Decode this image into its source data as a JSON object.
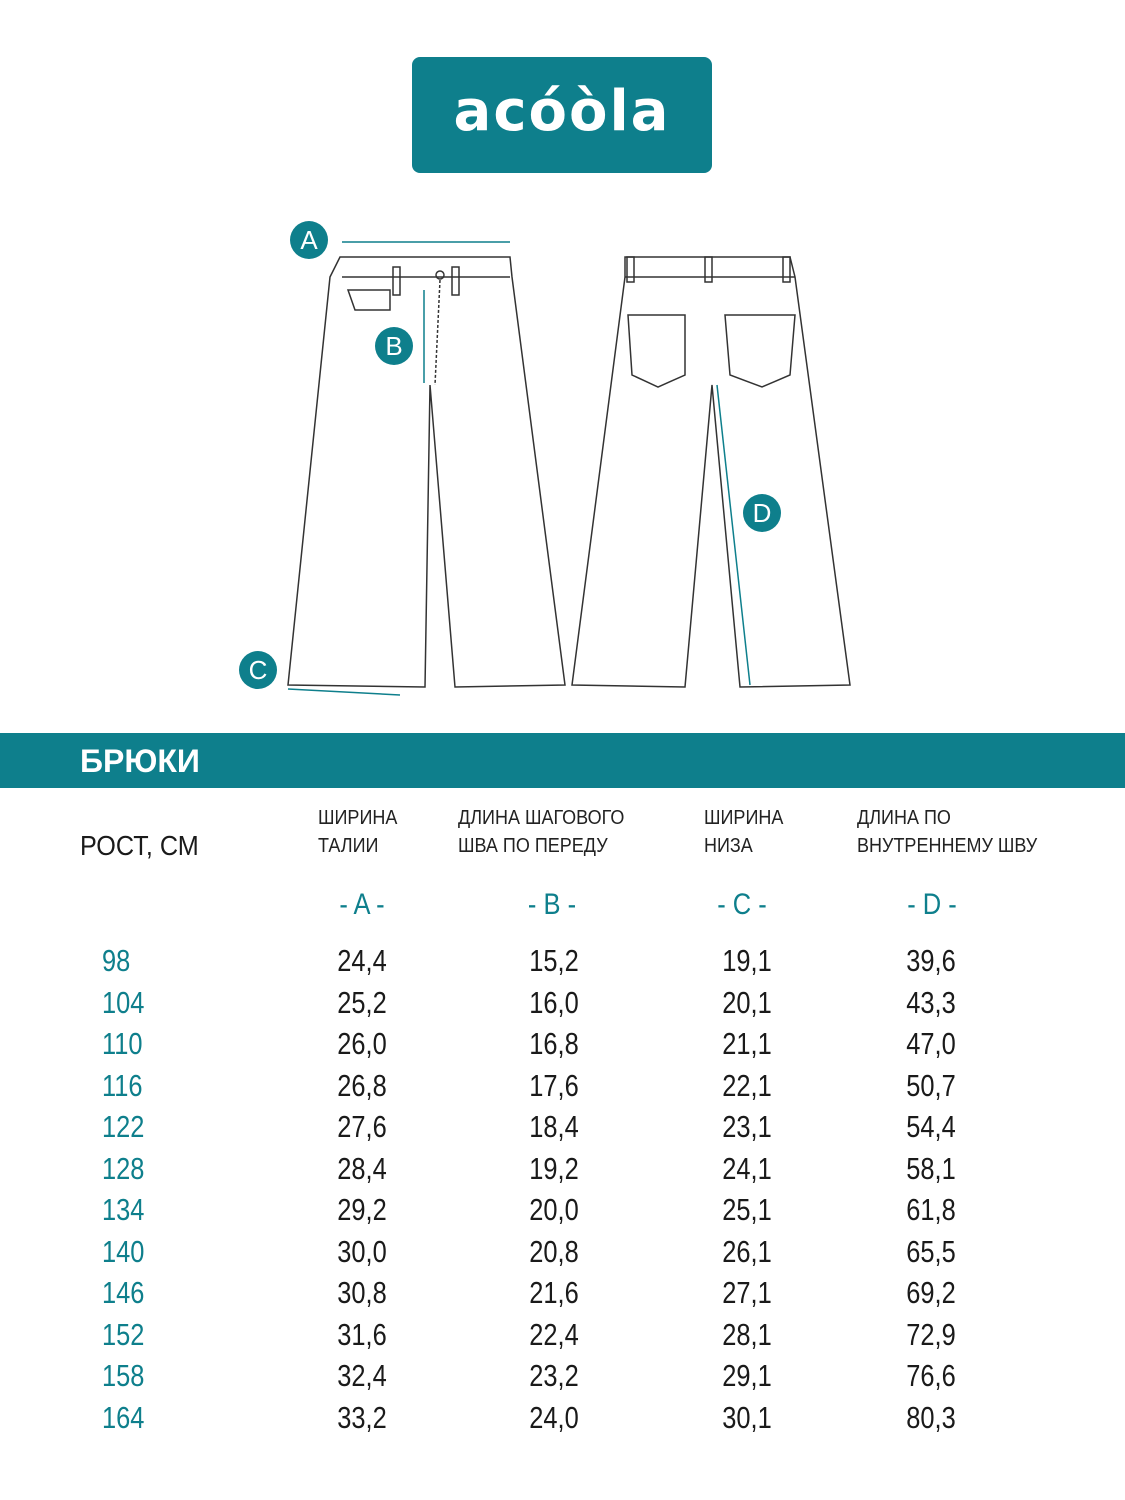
{
  "logo": {
    "text": "acóòla"
  },
  "diagram": {
    "labels": [
      "A",
      "B",
      "C",
      "D"
    ],
    "accent": "#0e7f8c"
  },
  "banner": {
    "title": "БРЮКИ"
  },
  "table": {
    "height_header": "РОСТ, СМ",
    "columns": [
      {
        "line1": "ШИРИНА",
        "line2": "ТАЛИИ",
        "letter": "- A -"
      },
      {
        "line1": "ДЛИНА ШАГОВОГО",
        "line2": "ШВА ПО ПЕРЕДУ",
        "letter": "- B -"
      },
      {
        "line1": "ШИРИНА",
        "line2": "НИЗА",
        "letter": "- C -"
      },
      {
        "line1": "ДЛИНА ПО",
        "line2": "ВНУТРЕННЕМУ ШВУ",
        "letter": "- D -"
      }
    ],
    "rows": [
      {
        "height": "98",
        "a": "24,4",
        "b": "15,2",
        "c": "19,1",
        "d": "39,6"
      },
      {
        "height": "104",
        "a": "25,2",
        "b": "16,0",
        "c": "20,1",
        "d": "43,3"
      },
      {
        "height": "110",
        "a": "26,0",
        "b": "16,8",
        "c": "21,1",
        "d": "47,0"
      },
      {
        "height": "116",
        "a": "26,8",
        "b": "17,6",
        "c": "22,1",
        "d": "50,7"
      },
      {
        "height": "122",
        "a": "27,6",
        "b": "18,4",
        "c": "23,1",
        "d": "54,4"
      },
      {
        "height": "128",
        "a": "28,4",
        "b": "19,2",
        "c": "24,1",
        "d": "58,1"
      },
      {
        "height": "134",
        "a": "29,2",
        "b": "20,0",
        "c": "25,1",
        "d": "61,8"
      },
      {
        "height": "140",
        "a": "30,0",
        "b": "20,8",
        "c": "26,1",
        "d": "65,5"
      },
      {
        "height": "146",
        "a": "30,8",
        "b": "21,6",
        "c": "27,1",
        "d": "69,2"
      },
      {
        "height": "152",
        "a": "31,6",
        "b": "22,4",
        "c": "28,1",
        "d": "72,9"
      },
      {
        "height": "158",
        "a": "32,4",
        "b": "23,2",
        "c": "29,1",
        "d": "76,6"
      },
      {
        "height": "164",
        "a": "33,2",
        "b": "24,0",
        "c": "30,1",
        "d": "80,3"
      }
    ]
  }
}
